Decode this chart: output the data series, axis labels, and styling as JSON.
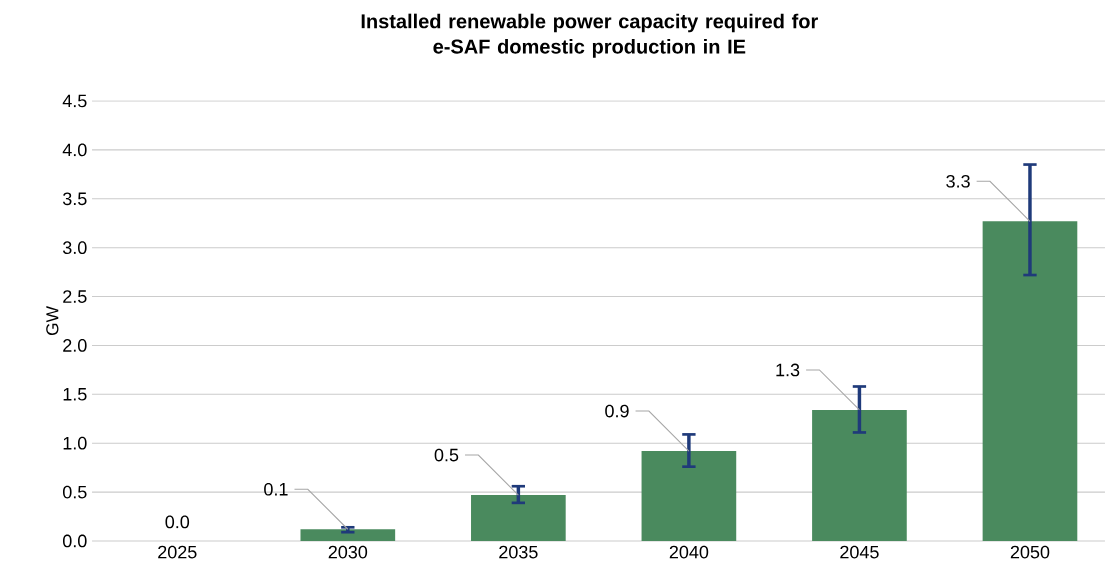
{
  "chart_data": {
    "type": "bar",
    "title": "Installed renewable power capacity required for\ne-SAF domestic production in IE",
    "ylabel": "GW",
    "categories": [
      "2025",
      "2030",
      "2035",
      "2040",
      "2045",
      "2050"
    ],
    "values": [
      0.0,
      0.12,
      0.47,
      0.92,
      1.34,
      3.27
    ],
    "errors": [
      null,
      [
        0.09,
        0.14
      ],
      [
        0.39,
        0.56
      ],
      [
        0.76,
        1.09
      ],
      [
        1.11,
        1.58
      ],
      [
        2.72,
        3.85
      ]
    ],
    "value_labels": [
      "0.0",
      "0.1",
      "0.5",
      "0.9",
      "1.3",
      "3.3"
    ],
    "color": "#4a8a5e",
    "ylim": [
      0,
      4.5
    ],
    "yticks": [
      {
        "value": 0,
        "label": "0.0"
      },
      0.5,
      {
        "value": 1,
        "label": "1.0"
      },
      1.5,
      {
        "value": 2,
        "label": "2.0"
      },
      2.5,
      {
        "value": 3,
        "label": "3.0"
      },
      3.5,
      {
        "value": 4,
        "label": "4.0"
      },
      4.5
    ],
    "grid": "y"
  }
}
